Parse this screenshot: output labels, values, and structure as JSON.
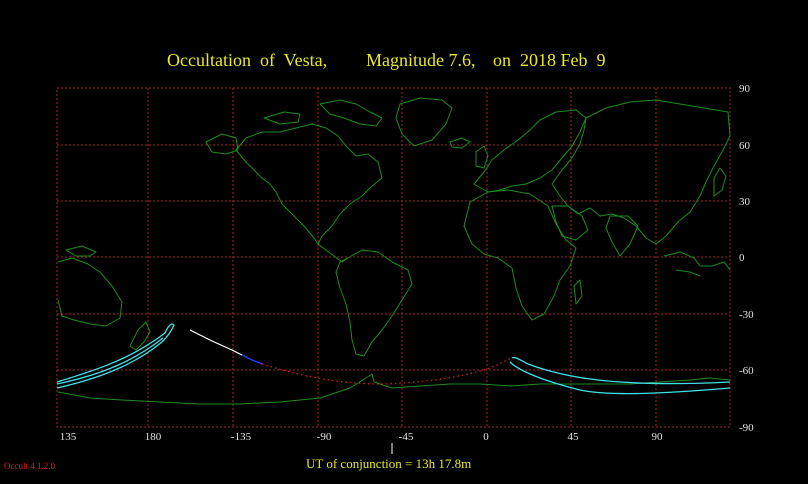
{
  "title": {
    "object": "Occultation  of  Vesta,",
    "magnitude": "Magnitude 7.6,",
    "date": "on  2018 Feb  9"
  },
  "footer": {
    "conjunction": "UT of conjunction = 13h 17.8m",
    "version": "Occult 4.1.2.0"
  },
  "map": {
    "x_ticks": [
      "135",
      "180",
      "-135",
      "-90",
      "-45",
      "0",
      "45",
      "90"
    ],
    "y_ticks": [
      "90",
      "60",
      "30",
      "0",
      "-30",
      "-60",
      "-90"
    ],
    "colors": {
      "grid": "#a02828",
      "coast": "#1e8c1e",
      "path_limit": "#40e0e8",
      "centre_line_day": "#ffffff",
      "centre_line_twilight": "#2040ff",
      "centre_line_dotted": "#e02020",
      "title": "#e8e82a"
    }
  }
}
